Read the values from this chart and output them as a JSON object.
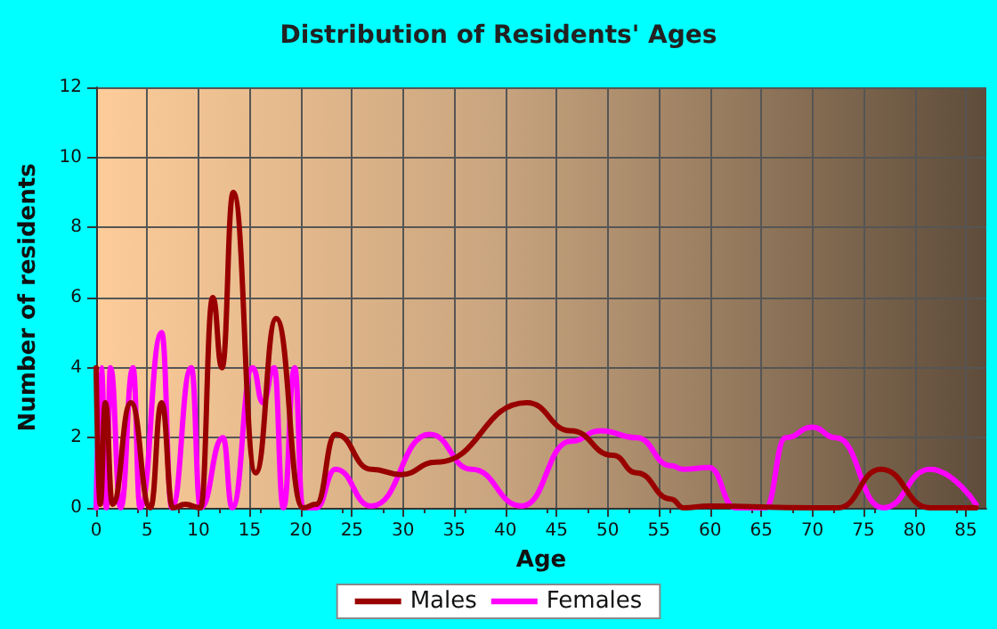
{
  "chart_data": {
    "type": "line",
    "title": "Distribution of Residents' Ages",
    "xlabel": "Age",
    "ylabel": "Number of residents",
    "xlim": [
      0,
      87
    ],
    "xticks": [
      0,
      5,
      10,
      15,
      20,
      25,
      30,
      35,
      40,
      45,
      50,
      55,
      60,
      65,
      70,
      75,
      80,
      85
    ],
    "ylim": [
      0,
      12
    ],
    "yticks": [
      0,
      2,
      4,
      6,
      8,
      10,
      12
    ],
    "grid": true,
    "legend": "bottom",
    "marker": "none",
    "line_style": "solid",
    "series": [
      {
        "name": "Males",
        "color": "#990000",
        "x": [
          0,
          0.4,
          0.9,
          1.6,
          3.4,
          5.3,
          6.4,
          7.5,
          8.7,
          10.2,
          11.4,
          12.3,
          13.4,
          15.6,
          17.6,
          20.2,
          21.5,
          23.4,
          26.9,
          29.8,
          33.2,
          42.1,
          46.4,
          50.5,
          52.8,
          56.2,
          57.4,
          59.9,
          70,
          72.5,
          76.7,
          81.5,
          86
        ],
        "values": [
          4,
          0.1,
          3,
          0.1,
          3,
          0,
          3,
          0,
          0.1,
          0,
          6,
          4,
          9,
          1,
          5.4,
          0,
          0.1,
          2.1,
          1.1,
          0.95,
          1.3,
          3,
          2.2,
          1.5,
          1,
          0.25,
          0,
          0.05,
          0,
          0,
          1.1,
          0,
          0
        ]
      },
      {
        "name": "Females",
        "color": "#ff00ff",
        "x": [
          0,
          0.5,
          1,
          1.4,
          2.4,
          3.6,
          4.3,
          6.4,
          7.4,
          9.3,
          10.2,
          12.4,
          13.3,
          15.3,
          16.3,
          17.4,
          18.3,
          19.4,
          20.2,
          21.5,
          23.4,
          26.9,
          32.6,
          36.7,
          41.6,
          46.4,
          49.3,
          52.8,
          56.2,
          57.4,
          59.9,
          62.5,
          65.4,
          67.4,
          70,
          72.3,
          76.9,
          81.5,
          86
        ],
        "values": [
          0,
          4,
          0,
          4,
          0,
          4,
          0,
          5,
          0,
          4,
          0,
          2,
          0,
          4,
          3,
          4,
          0,
          4,
          0,
          0,
          1.1,
          0.05,
          2.1,
          1.1,
          0.05,
          1.9,
          2.2,
          2,
          1.2,
          1.1,
          1.15,
          0,
          0,
          2,
          2.3,
          2,
          0,
          1.1,
          0.1
        ]
      }
    ]
  }
}
